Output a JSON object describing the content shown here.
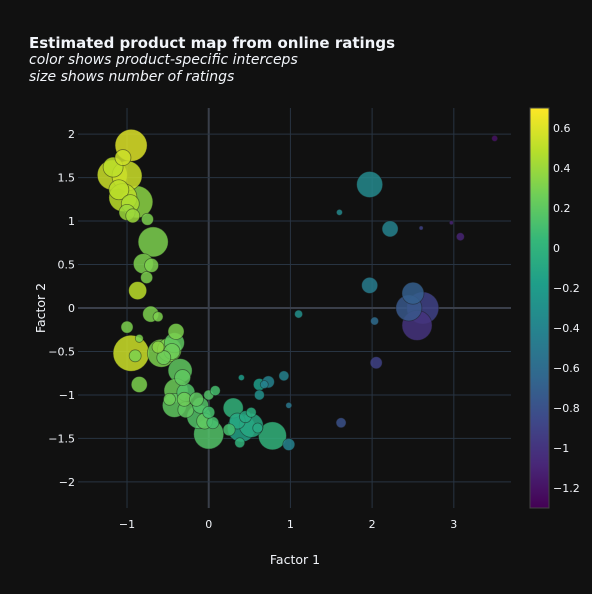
{
  "chart_data": {
    "type": "scatter",
    "title": "Estimated product map from online ratings",
    "subtitle_lines": [
      "color shows product-specific interceps",
      "size shows number of ratings"
    ],
    "xlabel": "Factor 1",
    "ylabel": "Factor 2",
    "xlim": [
      -1.6,
      3.7
    ],
    "ylim": [
      -2.3,
      2.3
    ],
    "xticks": [
      -1,
      0,
      1,
      2,
      3
    ],
    "yticks": [
      -2,
      -1.5,
      -1,
      -0.5,
      0,
      0.5,
      1,
      1.5,
      2
    ],
    "colorbar": {
      "range": [
        -1.3,
        0.7
      ],
      "ticks": [
        0.6,
        0.4,
        0.2,
        0,
        -0.2,
        -0.4,
        -0.6,
        -0.8,
        -1,
        -1.2
      ],
      "colorscale": "viridis"
    },
    "size_meaning": "number of ratings",
    "color_meaning": "product-specific intercept",
    "points": [
      {
        "x": -0.95,
        "y": 1.87,
        "c": 0.6,
        "s": 16
      },
      {
        "x": -1.17,
        "y": 1.62,
        "c": 0.5,
        "s": 10
      },
      {
        "x": -1.05,
        "y": 1.73,
        "c": 0.55,
        "s": 8
      },
      {
        "x": -1.18,
        "y": 1.53,
        "c": 0.55,
        "s": 15
      },
      {
        "x": -1.0,
        "y": 1.52,
        "c": 0.55,
        "s": 15
      },
      {
        "x": -1.1,
        "y": 1.36,
        "c": 0.5,
        "s": 10
      },
      {
        "x": -1.05,
        "y": 1.27,
        "c": 0.5,
        "s": 14
      },
      {
        "x": -0.88,
        "y": 1.22,
        "c": 0.35,
        "s": 16
      },
      {
        "x": -0.96,
        "y": 1.2,
        "c": 0.45,
        "s": 9
      },
      {
        "x": -1.0,
        "y": 1.1,
        "c": 0.4,
        "s": 8
      },
      {
        "x": -0.93,
        "y": 1.06,
        "c": 0.4,
        "s": 7
      },
      {
        "x": -0.75,
        "y": 1.02,
        "c": 0.3,
        "s": 6
      },
      {
        "x": -0.68,
        "y": 0.76,
        "c": 0.3,
        "s": 15
      },
      {
        "x": -0.8,
        "y": 0.51,
        "c": 0.3,
        "s": 10
      },
      {
        "x": -0.7,
        "y": 0.49,
        "c": 0.3,
        "s": 7
      },
      {
        "x": -0.76,
        "y": 0.35,
        "c": 0.3,
        "s": 6
      },
      {
        "x": -0.87,
        "y": 0.2,
        "c": 0.5,
        "s": 9
      },
      {
        "x": -0.71,
        "y": -0.07,
        "c": 0.3,
        "s": 8
      },
      {
        "x": -0.62,
        "y": -0.1,
        "c": 0.3,
        "s": 5
      },
      {
        "x": -1.0,
        "y": -0.22,
        "c": 0.3,
        "s": 6
      },
      {
        "x": -0.85,
        "y": -0.35,
        "c": 0.3,
        "s": 4
      },
      {
        "x": -0.95,
        "y": -0.52,
        "c": 0.55,
        "s": 18
      },
      {
        "x": -0.9,
        "y": -0.55,
        "c": 0.3,
        "s": 6
      },
      {
        "x": -0.62,
        "y": -0.45,
        "c": 0.35,
        "s": 6
      },
      {
        "x": -0.48,
        "y": -0.48,
        "c": 0.3,
        "s": 12
      },
      {
        "x": -0.58,
        "y": -0.52,
        "c": 0.3,
        "s": 14
      },
      {
        "x": -0.45,
        "y": -0.5,
        "c": 0.25,
        "s": 8
      },
      {
        "x": -0.4,
        "y": -0.27,
        "c": 0.3,
        "s": 8
      },
      {
        "x": -0.42,
        "y": -0.4,
        "c": 0.2,
        "s": 10
      },
      {
        "x": -0.55,
        "y": -0.57,
        "c": 0.25,
        "s": 7
      },
      {
        "x": -0.85,
        "y": -0.88,
        "c": 0.3,
        "s": 8
      },
      {
        "x": -0.35,
        "y": -0.72,
        "c": 0.2,
        "s": 12
      },
      {
        "x": -0.32,
        "y": -0.8,
        "c": 0.2,
        "s": 8
      },
      {
        "x": -0.4,
        "y": -0.95,
        "c": 0.25,
        "s": 12
      },
      {
        "x": -0.28,
        "y": -0.97,
        "c": 0.15,
        "s": 9
      },
      {
        "x": -0.3,
        "y": -1.05,
        "c": 0.25,
        "s": 7
      },
      {
        "x": -0.42,
        "y": -1.12,
        "c": 0.2,
        "s": 12
      },
      {
        "x": -0.48,
        "y": -1.05,
        "c": 0.25,
        "s": 6
      },
      {
        "x": -0.28,
        "y": -1.17,
        "c": 0.2,
        "s": 8
      },
      {
        "x": -0.15,
        "y": -1.05,
        "c": 0.2,
        "s": 7
      },
      {
        "x": -0.1,
        "y": -1.12,
        "c": 0.15,
        "s": 8
      },
      {
        "x": -0.12,
        "y": -1.25,
        "c": 0.15,
        "s": 12
      },
      {
        "x": -0.05,
        "y": -1.3,
        "c": 0.2,
        "s": 8
      },
      {
        "x": 0.05,
        "y": -1.32,
        "c": 0.1,
        "s": 6
      },
      {
        "x": 0.0,
        "y": -1.2,
        "c": 0.1,
        "s": 6
      },
      {
        "x": 0.0,
        "y": -1.0,
        "c": 0.15,
        "s": 5
      },
      {
        "x": 0.08,
        "y": -0.95,
        "c": 0.1,
        "s": 5
      },
      {
        "x": 0.0,
        "y": -1.45,
        "c": 0.15,
        "s": 15
      },
      {
        "x": 0.25,
        "y": -1.4,
        "c": 0.1,
        "s": 6
      },
      {
        "x": 0.3,
        "y": -1.15,
        "c": 0.0,
        "s": 10
      },
      {
        "x": 0.35,
        "y": -1.3,
        "c": -0.1,
        "s": 8
      },
      {
        "x": 0.4,
        "y": -1.38,
        "c": -0.15,
        "s": 14
      },
      {
        "x": 0.38,
        "y": -1.55,
        "c": 0.0,
        "s": 5
      },
      {
        "x": 0.52,
        "y": -1.35,
        "c": -0.1,
        "s": 12
      },
      {
        "x": 0.45,
        "y": -1.25,
        "c": -0.1,
        "s": 6
      },
      {
        "x": 0.52,
        "y": -1.2,
        "c": -0.05,
        "s": 5
      },
      {
        "x": 0.6,
        "y": -1.38,
        "c": -0.1,
        "s": 5
      },
      {
        "x": 0.78,
        "y": -1.47,
        "c": 0.0,
        "s": 14
      },
      {
        "x": 0.98,
        "y": -1.57,
        "c": -0.4,
        "s": 6
      },
      {
        "x": 0.62,
        "y": -0.88,
        "c": -0.2,
        "s": 6
      },
      {
        "x": 0.62,
        "y": -1.0,
        "c": -0.3,
        "s": 5
      },
      {
        "x": 0.68,
        "y": -0.88,
        "c": -0.4,
        "s": 4
      },
      {
        "x": 0.73,
        "y": -0.85,
        "c": -0.4,
        "s": 6
      },
      {
        "x": 0.92,
        "y": -0.78,
        "c": -0.4,
        "s": 5
      },
      {
        "x": 0.4,
        "y": -0.8,
        "c": -0.2,
        "s": 3
      },
      {
        "x": 0.98,
        "y": -1.12,
        "c": -0.5,
        "s": 3
      },
      {
        "x": 1.1,
        "y": -0.07,
        "c": -0.3,
        "s": 4
      },
      {
        "x": 1.6,
        "y": 1.1,
        "c": -0.35,
        "s": 3
      },
      {
        "x": 1.97,
        "y": 1.42,
        "c": -0.35,
        "s": 13
      },
      {
        "x": 2.22,
        "y": 0.91,
        "c": -0.4,
        "s": 8
      },
      {
        "x": 1.97,
        "y": 0.26,
        "c": -0.45,
        "s": 8
      },
      {
        "x": 2.03,
        "y": -0.15,
        "c": -0.6,
        "s": 4
      },
      {
        "x": 2.05,
        "y": -0.63,
        "c": -0.9,
        "s": 6
      },
      {
        "x": 1.62,
        "y": -1.32,
        "c": -0.8,
        "s": 5
      },
      {
        "x": 2.45,
        "y": 0.0,
        "c": -0.75,
        "s": 13
      },
      {
        "x": 2.5,
        "y": 0.17,
        "c": -0.7,
        "s": 11
      },
      {
        "x": 2.55,
        "y": -0.2,
        "c": -1.0,
        "s": 15
      },
      {
        "x": 2.62,
        "y": 0.0,
        "c": -0.9,
        "s": 16
      },
      {
        "x": 2.6,
        "y": 0.92,
        "c": -0.9,
        "s": 2
      },
      {
        "x": 2.97,
        "y": 0.98,
        "c": -1.1,
        "s": 2
      },
      {
        "x": 3.08,
        "y": 0.82,
        "c": -1.1,
        "s": 4
      },
      {
        "x": 3.5,
        "y": 1.95,
        "c": -1.2,
        "s": 3
      }
    ]
  }
}
